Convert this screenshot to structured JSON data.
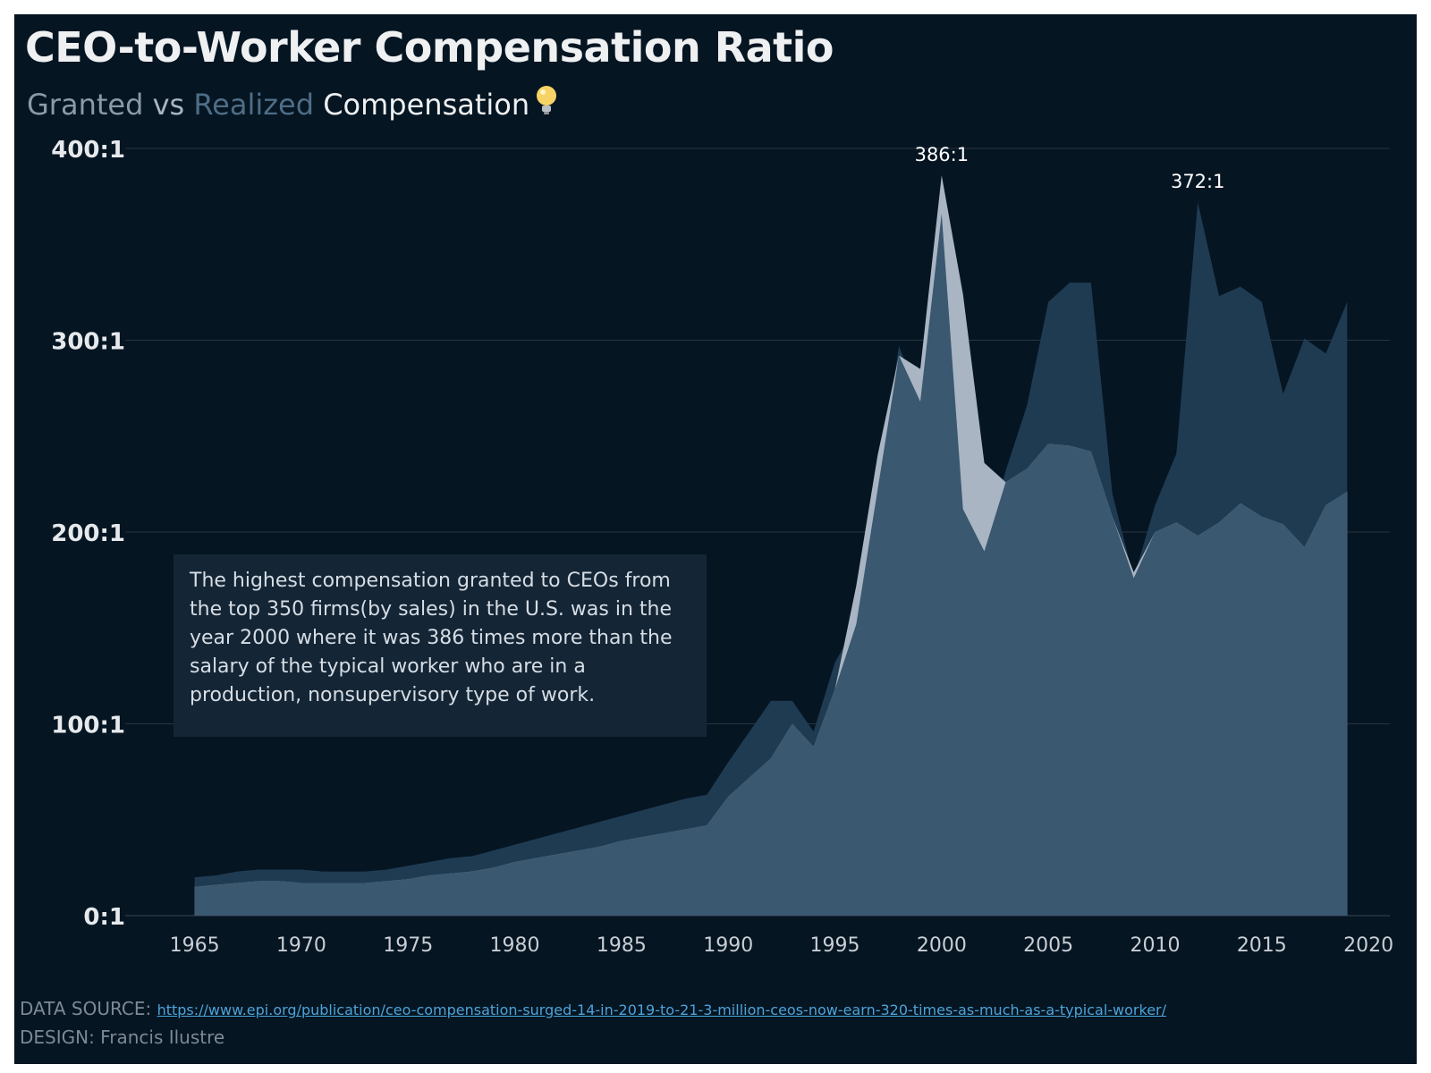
{
  "title": "CEO-to-Worker Compensation Ratio",
  "subtitle": {
    "granted": "Granted",
    "vs": " vs ",
    "realized": "Realized",
    "rest": " Compensation",
    "icon": "lightbulb-icon"
  },
  "note": "The highest compensation granted to CEOs from the top 350 firms(by sales) in the U.S. was in the year 2000 where it was 386 times more than the salary of the typical worker who are in a production, nonsupervisory type of work.",
  "footer": {
    "source_label": "DATA SOURCE:",
    "source_url": "https://www.epi.org/publication/ceo-compensation-surged-14-in-2019-to-21-3-million-ceos-now-earn-320-times-as-much-as-a-typical-worker/",
    "design": "DESIGN: Francis Ilustre"
  },
  "colors": {
    "background": "#051522",
    "granted": "#a9b5c3",
    "realized": "#3a586f",
    "realized_top": "#1f3b52",
    "gridline": "#2a3540"
  },
  "chart_data": {
    "type": "area",
    "title": "CEO-to-Worker Compensation Ratio",
    "xlim": [
      1962,
      2021
    ],
    "ylim": [
      0,
      400
    ],
    "x_ticks": [
      "1965",
      "1970",
      "1975",
      "1980",
      "1985",
      "1990",
      "1995",
      "2000",
      "2005",
      "2010",
      "2015",
      "2020"
    ],
    "y_ticks": [
      {
        "value": 0,
        "label": "0:1"
      },
      {
        "value": 100,
        "label": "100:1"
      },
      {
        "value": 200,
        "label": "200:1"
      },
      {
        "value": 300,
        "label": "300:1"
      },
      {
        "value": 400,
        "label": "400:1"
      }
    ],
    "grid": true,
    "x": [
      1965,
      1966,
      1967,
      1968,
      1969,
      1970,
      1971,
      1972,
      1973,
      1974,
      1975,
      1976,
      1977,
      1978,
      1979,
      1980,
      1981,
      1982,
      1983,
      1984,
      1985,
      1986,
      1987,
      1988,
      1989,
      1990,
      1991,
      1992,
      1993,
      1994,
      1995,
      1996,
      1997,
      1998,
      1999,
      2000,
      2001,
      2002,
      2003,
      2004,
      2005,
      2006,
      2007,
      2008,
      2009,
      2010,
      2011,
      2012,
      2013,
      2014,
      2015,
      2016,
      2017,
      2018,
      2019
    ],
    "series": [
      {
        "name": "Granted",
        "values": [
          15,
          16,
          17,
          18,
          18,
          17,
          17,
          17,
          17,
          18,
          19,
          21,
          22,
          23,
          25,
          28,
          30,
          32,
          34,
          36,
          39,
          41,
          43,
          45,
          47,
          62,
          72,
          82,
          100,
          88,
          118,
          172,
          240,
          292,
          285,
          386,
          324,
          236,
          226,
          233,
          246,
          245,
          242,
          208,
          179,
          200,
          205,
          198,
          205,
          215,
          208,
          204,
          192,
          214,
          221
        ]
      },
      {
        "name": "Realized",
        "values": [
          20,
          21,
          23,
          24,
          24,
          24,
          23,
          23,
          23,
          24,
          26,
          28,
          30,
          31,
          34,
          37,
          40,
          43,
          46,
          49,
          52,
          55,
          58,
          61,
          63,
          80,
          96,
          112,
          112,
          96,
          132,
          152,
          222,
          297,
          268,
          366,
          212,
          190,
          232,
          266,
          320,
          330,
          330,
          220,
          176,
          214,
          241,
          372,
          323,
          328,
          320,
          272,
          301,
          293,
          320
        ]
      }
    ],
    "annotations": [
      {
        "x": 2000,
        "y": 386,
        "text": "386:1"
      },
      {
        "x": 2012,
        "y": 372,
        "text": "372:1"
      }
    ]
  }
}
